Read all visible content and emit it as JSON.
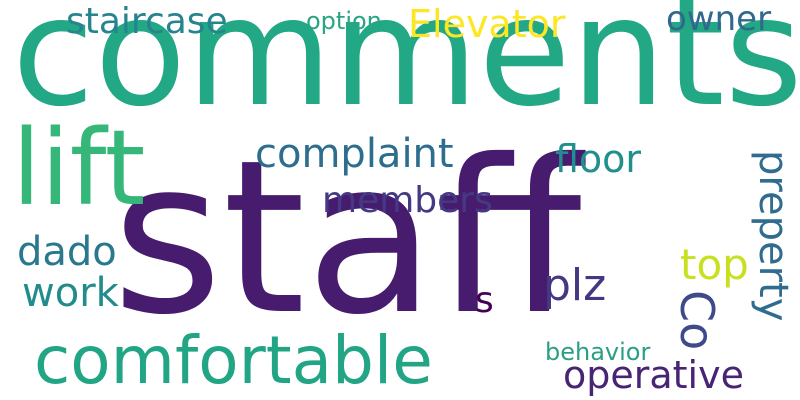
{
  "words": [
    {
      "text": "comments",
      "color": "#22a884"
    },
    {
      "text": "staff",
      "color": "#471c6e"
    },
    {
      "text": "lift",
      "color": "#35b779"
    },
    {
      "text": "comfortable",
      "color": "#21a585"
    },
    {
      "text": "complaint",
      "color": "#2d6e8e"
    },
    {
      "text": "staircase",
      "color": "#25848e"
    },
    {
      "text": "Elevator",
      "color": "#fde725"
    },
    {
      "text": "owner",
      "color": "#31688e"
    },
    {
      "text": "option",
      "color": "#2aa483"
    },
    {
      "text": "floor",
      "color": "#218f8d"
    },
    {
      "text": "members",
      "color": "#443a83"
    },
    {
      "text": "dado",
      "color": "#2a788e"
    },
    {
      "text": "work",
      "color": "#228c8d"
    },
    {
      "text": "top",
      "color": "#c8e020"
    },
    {
      "text": "plz",
      "color": "#453781"
    },
    {
      "text": "s",
      "color": "#440154"
    },
    {
      "text": "Co",
      "color": "#3e4a89"
    },
    {
      "text": "preperty",
      "color": "#2f6c8e"
    },
    {
      "text": "operative",
      "color": "#482475"
    },
    {
      "text": "behavior",
      "color": "#2aa083"
    }
  ]
}
